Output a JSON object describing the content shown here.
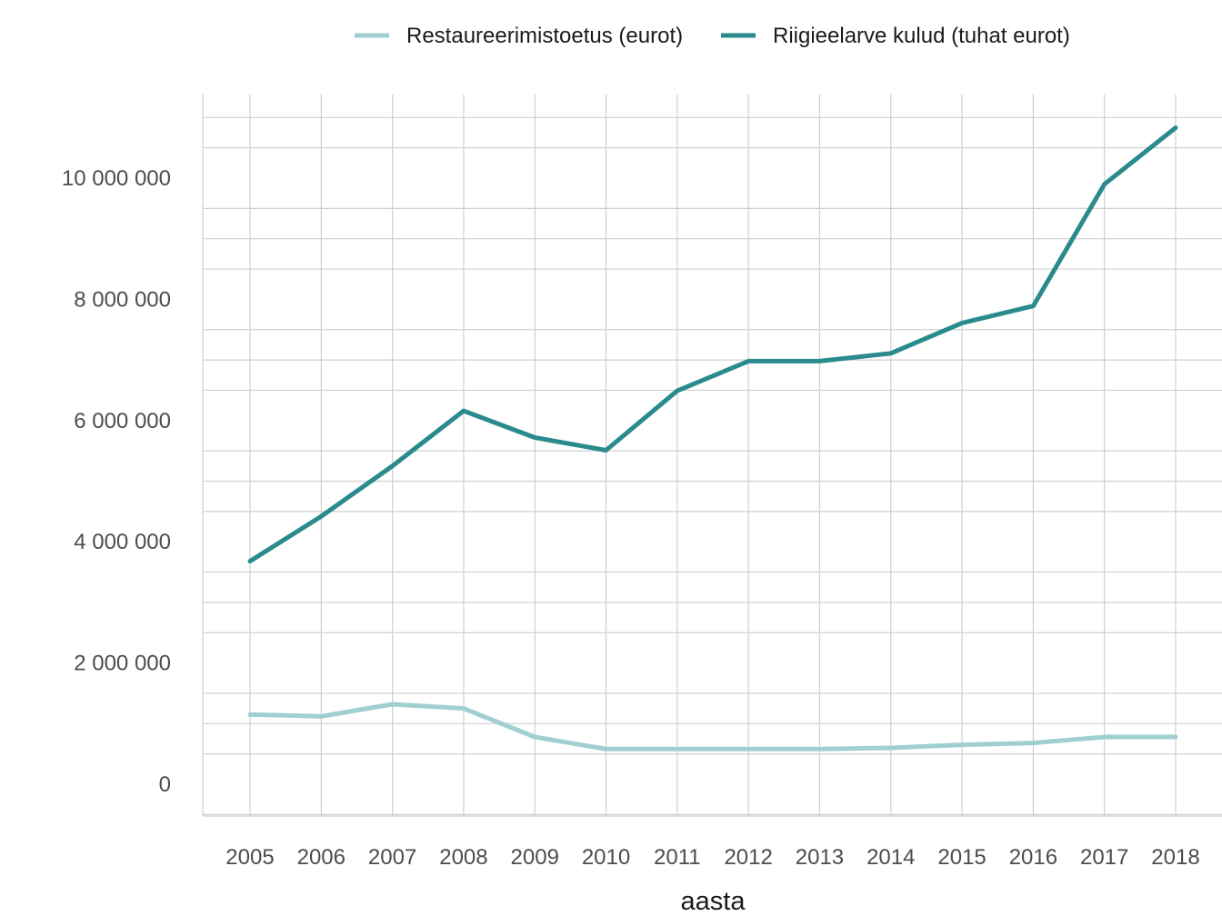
{
  "chart_data": {
    "type": "line",
    "xlabel": "aasta",
    "ylabel": "",
    "x": [
      2005,
      2006,
      2007,
      2008,
      2009,
      2010,
      2011,
      2012,
      2013,
      2014,
      2015,
      2016,
      2017,
      2018
    ],
    "xlim": [
      2004.35,
      2018.4
    ],
    "ylim": [
      -500000,
      11400000
    ],
    "y_ticks": [
      0,
      2000000,
      4000000,
      6000000,
      8000000,
      10000000
    ],
    "y_tick_labels": [
      "0",
      "2 000 000",
      "4 000 000",
      "6 000 000",
      "8 000 000",
      "10 000 000"
    ],
    "x_tick_labels": [
      "2005",
      "2006",
      "2007",
      "2008",
      "2009",
      "2010",
      "2011",
      "2012",
      "2013",
      "2014",
      "2015",
      "2016",
      "2017",
      "2018"
    ],
    "grid": true,
    "legend_position": "top",
    "series": [
      {
        "name": "Restaureerimistoetus (eurot)",
        "color": "#9fcfd0",
        "values": [
          1150000,
          1120000,
          1320000,
          1250000,
          780000,
          580000,
          580000,
          580000,
          580000,
          600000,
          650000,
          680000,
          780000,
          780000
        ]
      },
      {
        "name": "Riigieelarve kulud (tuhat eurot)",
        "color": "#2a8a8c",
        "values": [
          3680000,
          4420000,
          5250000,
          6160000,
          5720000,
          5510000,
          6490000,
          6980000,
          6980000,
          7110000,
          7610000,
          7890000,
          9900000,
          10830000
        ]
      }
    ]
  }
}
